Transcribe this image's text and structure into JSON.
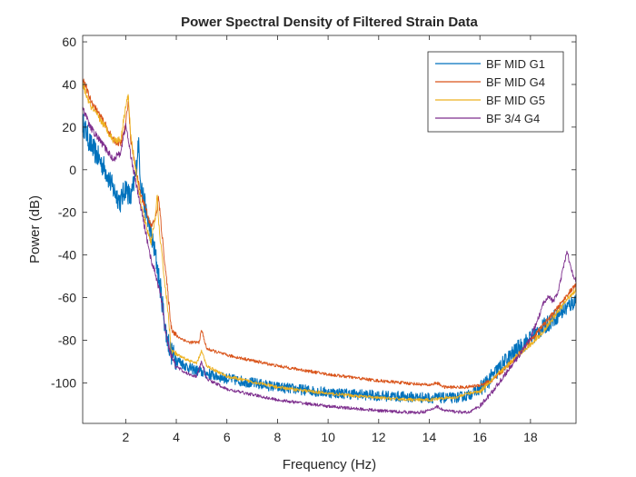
{
  "chart_data": {
    "type": "line",
    "title": "Power Spectral Density of Filtered Strain Data",
    "xlabel": "Frequency (Hz)",
    "ylabel": "Power (dB)",
    "xlim": [
      0.3,
      19.8
    ],
    "ylim": [
      -119,
      63
    ],
    "xticks": [
      2,
      4,
      6,
      8,
      10,
      12,
      14,
      16,
      18
    ],
    "yticks": [
      60,
      40,
      20,
      0,
      -20,
      -40,
      -60,
      -80,
      -100
    ],
    "grid": false,
    "legend_position": "top-right",
    "series": [
      {
        "name": "BF MID G1",
        "color": "#0072BD",
        "band_width": 5,
        "points": [
          [
            0.3,
            22
          ],
          [
            0.6,
            12
          ],
          [
            0.9,
            6
          ],
          [
            1.2,
            0
          ],
          [
            1.5,
            -9
          ],
          [
            1.8,
            -15
          ],
          [
            2.0,
            -8
          ],
          [
            2.2,
            -14
          ],
          [
            2.4,
            -2
          ],
          [
            2.5,
            13
          ],
          [
            2.6,
            -6
          ],
          [
            2.8,
            -20
          ],
          [
            3.0,
            -30
          ],
          [
            3.2,
            -42
          ],
          [
            3.4,
            -58
          ],
          [
            3.6,
            -77
          ],
          [
            3.8,
            -86
          ],
          [
            4.0,
            -89
          ],
          [
            4.5,
            -93
          ],
          [
            5.0,
            -95
          ],
          [
            6.0,
            -98
          ],
          [
            8.0,
            -102
          ],
          [
            10.0,
            -104.5
          ],
          [
            12.0,
            -106
          ],
          [
            13.0,
            -106.5
          ],
          [
            14.0,
            -107
          ],
          [
            14.5,
            -107
          ],
          [
            15.0,
            -107
          ],
          [
            15.5,
            -106
          ],
          [
            16.0,
            -103
          ],
          [
            16.5,
            -97
          ],
          [
            17.0,
            -90
          ],
          [
            17.5,
            -84
          ],
          [
            18.0,
            -79
          ],
          [
            18.5,
            -74
          ],
          [
            19.0,
            -69
          ],
          [
            19.5,
            -64
          ],
          [
            19.8,
            -61
          ]
        ]
      },
      {
        "name": "BF MID G4",
        "color": "#D95319",
        "band_width": 1.5,
        "points": [
          [
            0.3,
            43
          ],
          [
            0.6,
            33
          ],
          [
            0.9,
            27
          ],
          [
            1.2,
            21
          ],
          [
            1.5,
            14
          ],
          [
            1.8,
            12
          ],
          [
            2.0,
            21
          ],
          [
            2.1,
            33
          ],
          [
            2.2,
            14
          ],
          [
            2.4,
            0
          ],
          [
            2.6,
            -12
          ],
          [
            2.8,
            -18
          ],
          [
            3.0,
            -27
          ],
          [
            3.2,
            -22
          ],
          [
            3.3,
            -13
          ],
          [
            3.4,
            -26
          ],
          [
            3.6,
            -50
          ],
          [
            3.8,
            -74
          ],
          [
            4.0,
            -78
          ],
          [
            4.5,
            -81
          ],
          [
            4.9,
            -81
          ],
          [
            5.0,
            -75
          ],
          [
            5.2,
            -84
          ],
          [
            6.0,
            -87
          ],
          [
            8.0,
            -92
          ],
          [
            10.0,
            -96
          ],
          [
            12.0,
            -99
          ],
          [
            14.0,
            -101
          ],
          [
            14.3,
            -100
          ],
          [
            14.6,
            -102
          ],
          [
            15.5,
            -102
          ],
          [
            16.0,
            -101
          ],
          [
            16.5,
            -99
          ],
          [
            17.0,
            -93
          ],
          [
            17.5,
            -87
          ],
          [
            18.0,
            -80
          ],
          [
            18.5,
            -73
          ],
          [
            19.0,
            -66
          ],
          [
            19.5,
            -58
          ],
          [
            19.8,
            -54
          ]
        ]
      },
      {
        "name": "BF MID G5",
        "color": "#EDB120",
        "band_width": 1.5,
        "points": [
          [
            0.3,
            40
          ],
          [
            0.6,
            30
          ],
          [
            0.9,
            25
          ],
          [
            1.2,
            20
          ],
          [
            1.5,
            14
          ],
          [
            1.8,
            14
          ],
          [
            2.0,
            30
          ],
          [
            2.1,
            35
          ],
          [
            2.2,
            16
          ],
          [
            2.4,
            0
          ],
          [
            2.6,
            -16
          ],
          [
            2.8,
            -26
          ],
          [
            3.0,
            -34
          ],
          [
            3.2,
            -20
          ],
          [
            3.25,
            -11
          ],
          [
            3.3,
            -25
          ],
          [
            3.5,
            -48
          ],
          [
            3.7,
            -70
          ],
          [
            3.8,
            -85
          ],
          [
            4.2,
            -88
          ],
          [
            4.8,
            -91
          ],
          [
            5.0,
            -85
          ],
          [
            5.2,
            -92
          ],
          [
            6.0,
            -97
          ],
          [
            8.0,
            -102
          ],
          [
            10.0,
            -105
          ],
          [
            12.0,
            -107
          ],
          [
            13.5,
            -108
          ],
          [
            14.0,
            -108
          ],
          [
            14.5,
            -107
          ],
          [
            15.0,
            -107
          ],
          [
            15.5,
            -105
          ],
          [
            16.0,
            -104
          ],
          [
            16.5,
            -98
          ],
          [
            17.0,
            -93
          ],
          [
            17.5,
            -87
          ],
          [
            18.0,
            -82
          ],
          [
            18.5,
            -76
          ],
          [
            19.0,
            -68
          ],
          [
            19.5,
            -60
          ],
          [
            19.8,
            -56
          ]
        ]
      },
      {
        "name": "BF 3/4 G4",
        "color": "#7E2F8E",
        "band_width": 1.5,
        "points": [
          [
            0.3,
            29
          ],
          [
            0.6,
            20
          ],
          [
            0.9,
            15
          ],
          [
            1.2,
            10
          ],
          [
            1.5,
            5
          ],
          [
            1.8,
            8
          ],
          [
            2.0,
            21
          ],
          [
            2.2,
            7
          ],
          [
            2.4,
            -6
          ],
          [
            2.6,
            -18
          ],
          [
            2.8,
            -30
          ],
          [
            3.0,
            -42
          ],
          [
            3.2,
            -50
          ],
          [
            3.4,
            -60
          ],
          [
            3.6,
            -78
          ],
          [
            3.8,
            -87
          ],
          [
            4.0,
            -92
          ],
          [
            4.3,
            -95
          ],
          [
            4.8,
            -97
          ],
          [
            5.0,
            -90
          ],
          [
            5.2,
            -98
          ],
          [
            6.0,
            -103
          ],
          [
            8.0,
            -108
          ],
          [
            10.0,
            -111
          ],
          [
            12.0,
            -113
          ],
          [
            13.5,
            -114
          ],
          [
            14.0,
            -113
          ],
          [
            14.3,
            -111
          ],
          [
            14.6,
            -113
          ],
          [
            15.5,
            -114
          ],
          [
            16.0,
            -111
          ],
          [
            16.5,
            -104
          ],
          [
            17.0,
            -96
          ],
          [
            17.5,
            -88
          ],
          [
            18.0,
            -79
          ],
          [
            18.3,
            -70
          ],
          [
            18.5,
            -63
          ],
          [
            18.7,
            -59
          ],
          [
            18.9,
            -62
          ],
          [
            19.1,
            -57
          ],
          [
            19.3,
            -46
          ],
          [
            19.45,
            -38
          ],
          [
            19.6,
            -47
          ],
          [
            19.8,
            -52
          ]
        ]
      }
    ]
  }
}
